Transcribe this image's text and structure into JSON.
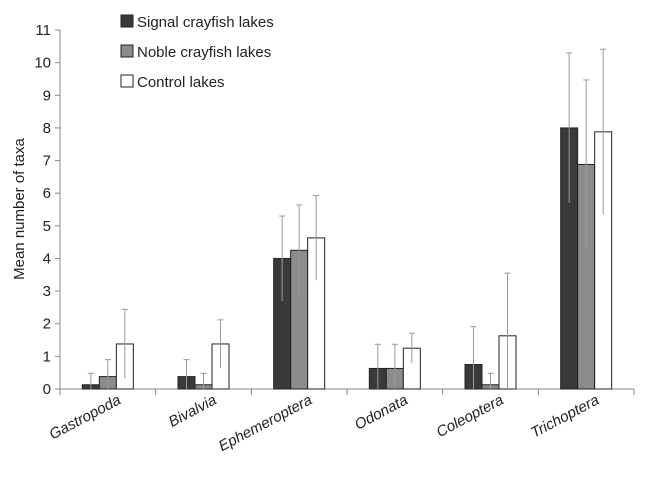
{
  "chart_data": {
    "type": "bar",
    "title": "",
    "xlabel": "",
    "ylabel": "Mean number of taxa",
    "ylim": [
      0,
      11
    ],
    "yticks": [
      0,
      1,
      2,
      3,
      4,
      5,
      6,
      7,
      8,
      9,
      10,
      11
    ],
    "grid": false,
    "legend_position": "top-left",
    "categories": [
      "Gastropoda",
      "Bivalvia",
      "Ephemeroptera",
      "Odonata",
      "Coleoptera",
      "Trichoptera"
    ],
    "series": [
      {
        "name": "Signal crayfish lakes",
        "color": "#3a3a3a",
        "values": [
          0.13,
          0.38,
          4.0,
          0.63,
          0.75,
          8.0
        ],
        "error": [
          0.35,
          0.52,
          1.3,
          0.74,
          1.16,
          2.3
        ]
      },
      {
        "name": "Noble crayfish lakes",
        "color": "#8c8c8c",
        "values": [
          0.38,
          0.13,
          4.25,
          0.63,
          0.13,
          6.88
        ],
        "error": [
          0.52,
          0.35,
          1.39,
          0.74,
          0.35,
          2.59
        ]
      },
      {
        "name": "Control lakes",
        "color": "#ffffff",
        "values": [
          1.38,
          1.38,
          4.63,
          1.25,
          1.63,
          7.88
        ],
        "error": [
          1.06,
          0.74,
          1.3,
          0.46,
          1.92,
          2.53
        ]
      }
    ]
  }
}
